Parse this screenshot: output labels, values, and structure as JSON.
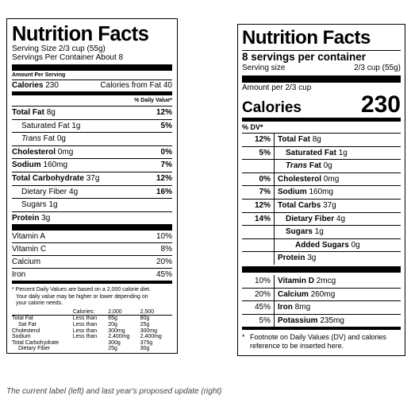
{
  "old_label": {
    "title": "Nutrition Facts",
    "serving_size": "Serving Size 2/3 cup (55g)",
    "servings_per_container": "Servings Per Container About 8",
    "amount_per_serving": "Amount Per Serving",
    "calories_label": "Calories",
    "calories_value": "230",
    "calories_from_fat": "Calories from Fat 40",
    "pct_daily_value_header": "% Daily Value*",
    "nutrients": [
      {
        "label": "Total Fat",
        "amount": "8g",
        "pct": "12%"
      },
      {
        "label": "Saturated Fat",
        "amount": "1g",
        "pct": "5%"
      },
      {
        "label_italic": "Trans",
        "label": "Fat",
        "amount": "0g",
        "pct": ""
      },
      {
        "label": "Cholesterol",
        "amount": "0mg",
        "pct": "0%"
      },
      {
        "label": "Sodium",
        "amount": "160mg",
        "pct": "7%"
      },
      {
        "label": "Total Carbohydrate",
        "amount": "37g",
        "pct": "12%"
      },
      {
        "label": "Dietary Fiber",
        "amount": "4g",
        "pct": "16%"
      },
      {
        "label": "Sugars",
        "amount": "1g",
        "pct": ""
      },
      {
        "label": "Protein",
        "amount": "3g",
        "pct": ""
      }
    ],
    "vitamins": [
      {
        "label": "Vitamin A",
        "pct": "10%"
      },
      {
        "label": "Vitamin C",
        "pct": "8%"
      },
      {
        "label": "Calcium",
        "pct": "20%"
      },
      {
        "label": "Iron",
        "pct": "45%"
      }
    ],
    "footnote_lines": [
      "* Percent Daily Values are based on a 2,000 calorie diet.",
      "Your daily value may be higher or lower depending on",
      "your calorie needs."
    ],
    "dv_table": {
      "header": [
        "Calories:",
        "2,000",
        "2,500"
      ],
      "rows": [
        [
          "Total Fat",
          "Less than",
          "65g",
          "80g"
        ],
        [
          "Sat Fat",
          "Less than",
          "20g",
          "25g"
        ],
        [
          "Cholesterol",
          "Less than",
          "300mg",
          "300mg"
        ],
        [
          "Sodium",
          "Less than",
          "2,400mg",
          "2,400mg"
        ],
        [
          "Total Carbohydrate",
          "",
          "300g",
          "375g"
        ],
        [
          "Dietary Fiber",
          "",
          "25g",
          "30g"
        ]
      ]
    }
  },
  "new_label": {
    "title": "Nutrition Facts",
    "servings_per_container": "8 servings per container",
    "serving_size_label": "Serving size",
    "serving_size_value": "2/3 cup (55g)",
    "amount_per": "Amount per 2/3 cup",
    "calories_label": "Calories",
    "calories_value": "230",
    "dv_header": "% DV*",
    "nutrients": [
      {
        "pct": "12%",
        "label": "Total Fat",
        "amount": "8g"
      },
      {
        "pct": "5%",
        "label": "Saturated Fat",
        "amount": "1g"
      },
      {
        "pct": "",
        "label_italic": "Trans",
        "label": "Fat",
        "amount": "0g"
      },
      {
        "pct": "0%",
        "label": "Cholesterol",
        "amount": "0mg"
      },
      {
        "pct": "7%",
        "label": "Sodium",
        "amount": "160mg"
      },
      {
        "pct": "12%",
        "label": "Total Carbs",
        "amount": "37g"
      },
      {
        "pct": "14%",
        "label": "Dietary Fiber",
        "amount": "4g"
      },
      {
        "pct": "",
        "label": "Sugars",
        "amount": "1g"
      },
      {
        "pct": "",
        "label": "Added Sugars",
        "amount": "0g"
      },
      {
        "pct": "",
        "label": "Protein",
        "amount": "3g"
      }
    ],
    "vitamins": [
      {
        "pct": "10%",
        "label": "Vitamin D",
        "amount": "2mcg"
      },
      {
        "pct": "20%",
        "label": "Calcium",
        "amount": "260mg"
      },
      {
        "pct": "45%",
        "label": "Iron",
        "amount": "8mg"
      },
      {
        "pct": "5%",
        "label": "Potassium",
        "amount": "235mg"
      }
    ],
    "footnote_star": "*",
    "footnote": "Footnote on Daily Values (DV) and calories reference to be inserted here."
  },
  "caption": "The current label (left) and last year's proposed update (right)"
}
